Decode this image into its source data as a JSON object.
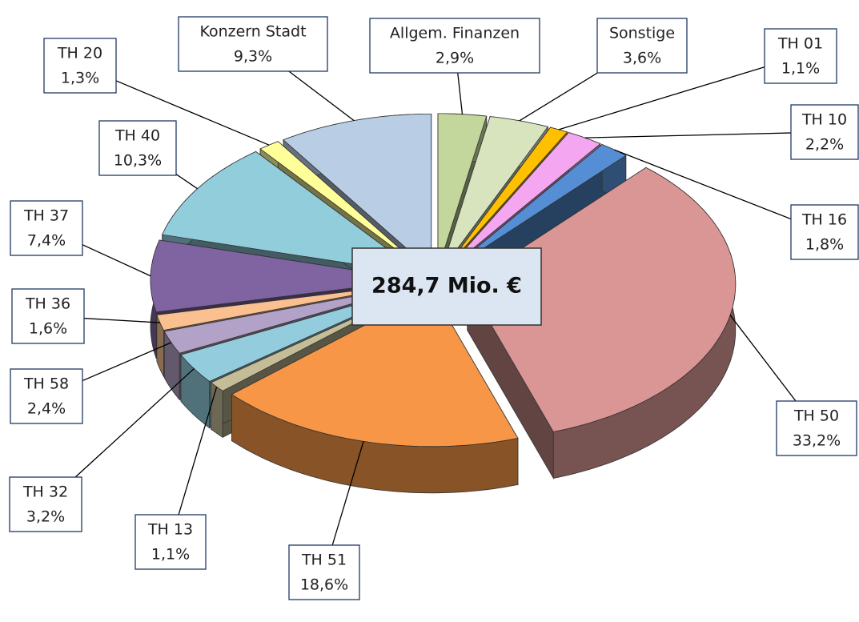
{
  "chart_data": {
    "type": "pie",
    "center_label": "284,7 Mio. €",
    "categories": [
      "Allgem. Finanzen",
      "Sonstige",
      "TH 01",
      "TH 10",
      "TH 16",
      "TH 50",
      "TH 51",
      "TH 13",
      "TH 32",
      "TH 58",
      "TH 36",
      "TH 37",
      "TH 40",
      "TH 20",
      "Konzern Stadt"
    ],
    "values": [
      2.9,
      3.6,
      1.1,
      2.2,
      1.8,
      33.2,
      18.6,
      1.1,
      3.2,
      2.4,
      1.6,
      7.4,
      10.3,
      1.3,
      9.3
    ],
    "value_labels": [
      "2,9%",
      "3,6%",
      "1,1%",
      "2,2%",
      "1,8%",
      "33,2%",
      "18,6%",
      "1,1%",
      "3,2%",
      "2,4%",
      "1,6%",
      "7,4%",
      "10,3%",
      "1,3%",
      "9,3%"
    ],
    "colors": [
      "#c3d69b",
      "#d7e4bd",
      "#ffc000",
      "#f4a6f0",
      "#558ed5",
      "#d99694",
      "#f79646",
      "#c4bd97",
      "#93cddd",
      "#b3a2c7",
      "#fac090",
      "#8064a2",
      "#92cddc",
      "#ffff99",
      "#b9cde5"
    ]
  }
}
